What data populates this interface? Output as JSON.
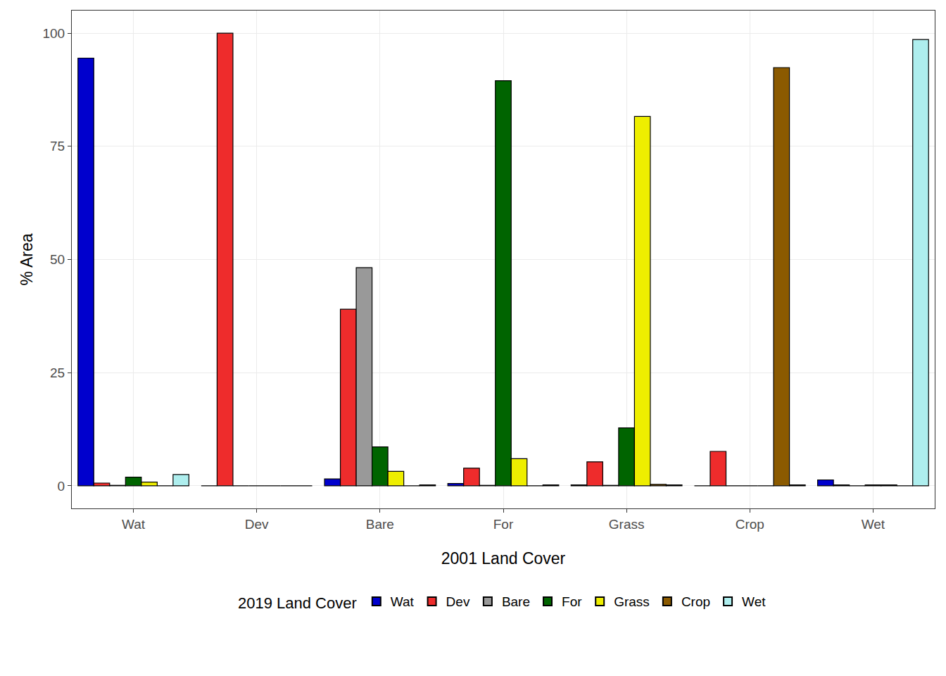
{
  "chart_data": {
    "type": "bar",
    "x_label": "2001 Land Cover",
    "y_label": "% Area",
    "legend_title": "2019 Land Cover",
    "categories": [
      "Wat",
      "Dev",
      "Bare",
      "For",
      "Grass",
      "Crop",
      "Wet"
    ],
    "series": [
      {
        "name": "Wat",
        "color": "#0000CD",
        "values": [
          94.5,
          0,
          1.5,
          0.5,
          0.2,
          0,
          1.3
        ]
      },
      {
        "name": "Dev",
        "color": "#EE2C2C",
        "values": [
          0.6,
          100,
          39,
          3.9,
          5.3,
          7.6,
          0.2
        ]
      },
      {
        "name": "Bare",
        "color": "#999999",
        "values": [
          0.1,
          0,
          48.2,
          0.1,
          0.1,
          0,
          0
        ]
      },
      {
        "name": "For",
        "color": "#006400",
        "values": [
          1.9,
          0,
          8.6,
          89.5,
          12.8,
          0,
          0.2
        ]
      },
      {
        "name": "Grass",
        "color": "#EEEE00",
        "values": [
          0.8,
          0,
          3.2,
          6.0,
          81.6,
          0,
          0.2
        ]
      },
      {
        "name": "Crop",
        "color": "#8B5A00",
        "values": [
          0,
          0,
          0,
          0,
          0.3,
          92.4,
          0
        ]
      },
      {
        "name": "Wet",
        "color": "#AEEEEE",
        "values": [
          2.5,
          0,
          0.2,
          0.2,
          0.2,
          0.2,
          98.6
        ]
      }
    ],
    "ylim": [
      -5,
      105
    ],
    "yticks": [
      0,
      25,
      50,
      75,
      100
    ],
    "grid": true,
    "legend": "bottom"
  }
}
